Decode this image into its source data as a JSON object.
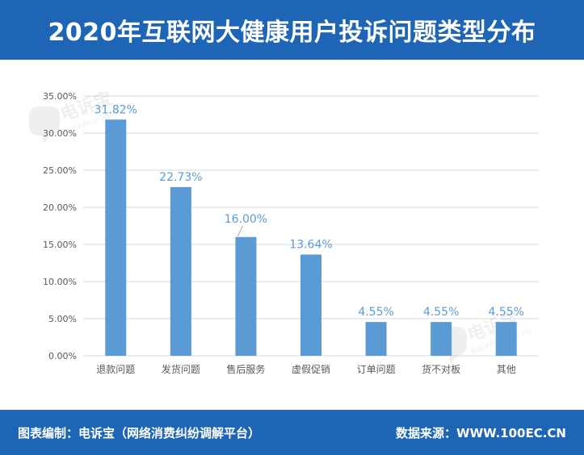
{
  "header": {
    "title": "2020年互联网大健康用户投诉问题类型分布"
  },
  "watermark": {
    "brand": "电诉宝",
    "sub": "网络消费纠纷调解平台"
  },
  "footer": {
    "left": "图表编制：电诉宝（网络消费纠纷调解平台）",
    "right": "数据来源：WWW.100EC.CN"
  },
  "colors": {
    "header": "#1f65b6",
    "bar": "#5b9bd5",
    "label": "#5b9bd5",
    "grid": "#d9d9d9",
    "axis_text": "#595959"
  },
  "chart_data": {
    "type": "bar",
    "title": "",
    "xlabel": "",
    "ylabel": "",
    "categories": [
      "退款问题",
      "发货问题",
      "售后服务",
      "虚假促销",
      "订单问题",
      "货不对板",
      "其他"
    ],
    "values": [
      31.82,
      22.73,
      16.0,
      13.64,
      4.55,
      4.55,
      4.55
    ],
    "value_labels": [
      "31.82%",
      "22.73%",
      "16.00%",
      "13.64%",
      "4.55%",
      "4.55%",
      "4.55%"
    ],
    "ylim": [
      0,
      35
    ],
    "yticks": [
      0,
      5,
      10,
      15,
      20,
      25,
      30,
      35
    ],
    "ytick_labels": [
      "0.00%",
      "5.00%",
      "10.00%",
      "15.00%",
      "20.00%",
      "25.00%",
      "30.00%",
      "35.00%"
    ],
    "grid": true,
    "legend": "none"
  }
}
